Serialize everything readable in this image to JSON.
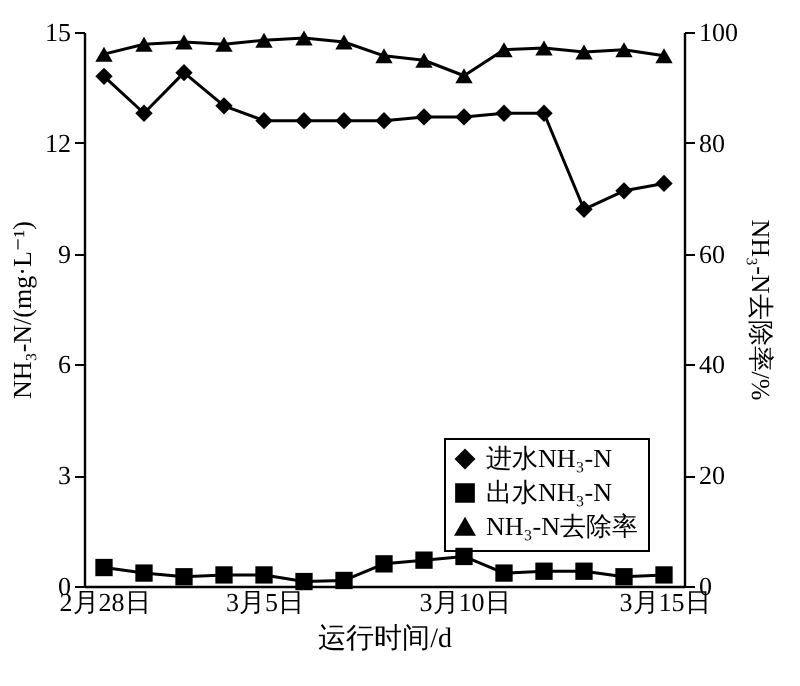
{
  "chart_data": {
    "type": "line",
    "xlabel": "运行时间/d",
    "ylabel": "NH₃-N/(mg·L⁻¹)",
    "y2label": "NH₃-N去除率/%",
    "categories": [
      "2月28日",
      null,
      null,
      null,
      "3月5日",
      null,
      null,
      null,
      null,
      "3月10日",
      null,
      null,
      null,
      null,
      "3月15日"
    ],
    "ylim": [
      0,
      15
    ],
    "yticks": [
      0,
      3,
      6,
      9,
      12,
      15
    ],
    "y2lim": [
      0,
      100
    ],
    "y2ticks": [
      0,
      20,
      40,
      60,
      80,
      100
    ],
    "legend": "bottom right",
    "grid": false,
    "series": [
      {
        "name": "进水NH₃-N",
        "color": "#000000",
        "marker": "diamond",
        "values": [
          13.8,
          12.8,
          13.9,
          13.0,
          12.6,
          12.6,
          12.6,
          12.6,
          12.7,
          12.7,
          12.8,
          12.8,
          10.2,
          10.7,
          10.9
        ]
      },
      {
        "name": "出水NH₃-N",
        "color": "#000000",
        "marker": "square",
        "values": [
          0.5,
          0.35,
          0.25,
          0.3,
          0.3,
          0.12,
          0.15,
          0.6,
          0.7,
          0.8,
          0.35,
          0.4,
          0.4,
          0.25,
          0.3
        ]
      },
      {
        "name": "NH₃-N去除率",
        "color": "#000000",
        "marker": "triangle",
        "axis": "y2",
        "values": [
          96.0,
          97.8,
          98.2,
          97.8,
          98.5,
          98.9,
          98.2,
          95.7,
          94.9,
          92.1,
          96.8,
          97.1,
          96.4,
          96.8,
          95.7
        ]
      }
    ]
  }
}
